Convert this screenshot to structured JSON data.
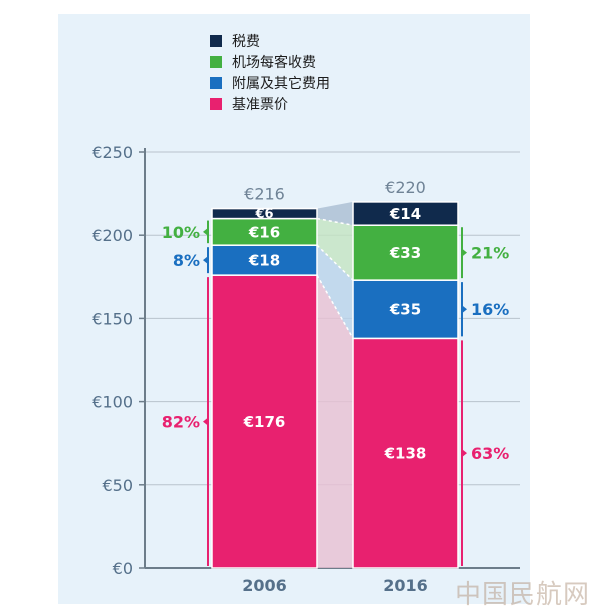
{
  "chart_data": {
    "type": "bar",
    "stacked": true,
    "categories": [
      "2006",
      "2016"
    ],
    "series": [
      {
        "name": "基准票价",
        "values": [
          176,
          138
        ],
        "color": "#e8216f"
      },
      {
        "name": "附属及其它费用",
        "values": [
          18,
          35
        ],
        "color": "#1a6fc0"
      },
      {
        "name": "机场每客收费",
        "values": [
          16,
          33
        ],
        "color": "#43b041"
      },
      {
        "name": "税费",
        "values": [
          6,
          14
        ],
        "color": "#102a4c"
      }
    ],
    "value_labels": [
      [
        "€176",
        "€18",
        "€16",
        "€6"
      ],
      [
        "€138",
        "€35",
        "€33",
        "€14"
      ]
    ],
    "totals": [
      "€216",
      "€220"
    ],
    "percent_labels": {
      "2006": {
        "基准票价": "82%",
        "附属及其它费用": "8%",
        "机场每客收费": "10%"
      },
      "2016": {
        "基准票价": "63%",
        "附属及其它费用": "16%",
        "机场每客收费": "21%"
      }
    },
    "y_ticks": [
      "€0",
      "€50",
      "€100",
      "€150",
      "€200",
      "€250"
    ],
    "y_tick_values": [
      0,
      50,
      100,
      150,
      200,
      250
    ],
    "ylim": [
      0,
      250
    ],
    "grid": true,
    "legend_position": "top"
  },
  "legend": {
    "items": [
      {
        "label": "税费",
        "color": "#102a4c"
      },
      {
        "label": "机场每客收费",
        "color": "#43b041"
      },
      {
        "label": "附属及其它费用",
        "color": "#1a6fc0"
      },
      {
        "label": "基准票价",
        "color": "#e8216f"
      }
    ]
  },
  "watermark": "中国民航网"
}
